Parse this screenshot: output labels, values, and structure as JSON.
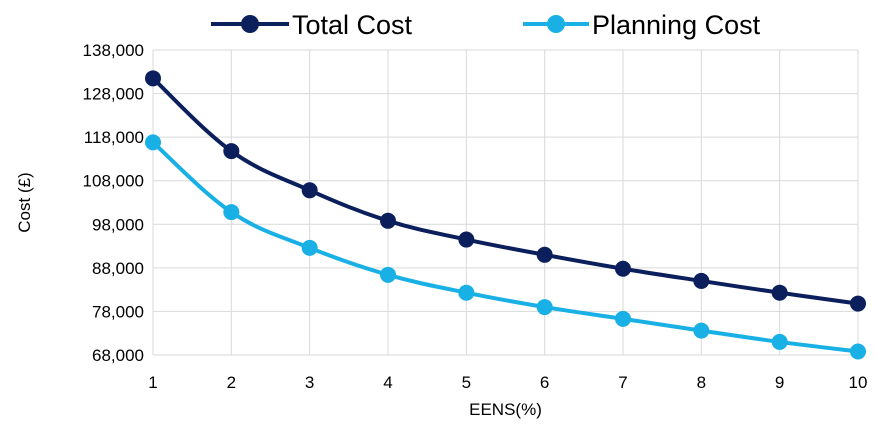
{
  "chart_data": {
    "type": "line",
    "title": "",
    "xlabel": "EENS(%)",
    "ylabel": "Cost (£)",
    "x": [
      1,
      2,
      3,
      4,
      5,
      6,
      7,
      8,
      9,
      10
    ],
    "x_tick_labels": [
      "1",
      "2",
      "3",
      "4",
      "5",
      "6",
      "7",
      "8",
      "9",
      "10"
    ],
    "ylim": [
      68000,
      138000
    ],
    "y_ticks": [
      68000,
      78000,
      88000,
      98000,
      108000,
      118000,
      128000,
      138000
    ],
    "y_tick_labels": [
      "68,000",
      "78,000",
      "88,000",
      "98,000",
      "108,000",
      "118,000",
      "128,000",
      "138,000"
    ],
    "grid": true,
    "legend_position": "top",
    "series": [
      {
        "name": "Total Cost",
        "color": "#0b1f5c",
        "values": [
          131500,
          114800,
          105800,
          98800,
          94500,
          91000,
          87800,
          85000,
          82300,
          79800
        ]
      },
      {
        "name": "Planning Cost",
        "color": "#19b0e6",
        "values": [
          116800,
          100800,
          92600,
          86400,
          82300,
          79000,
          76300,
          73600,
          71000,
          68800
        ]
      }
    ]
  }
}
